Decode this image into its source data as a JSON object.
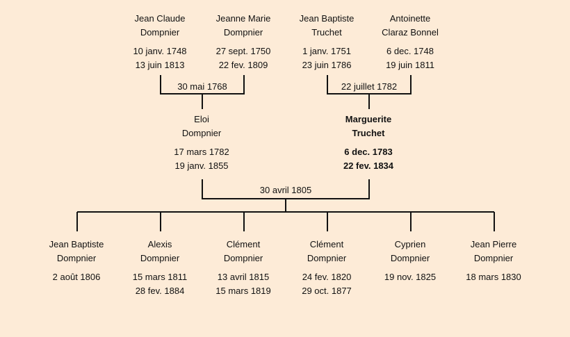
{
  "colors": {
    "background": "#fdebd7",
    "lines": "#111111"
  },
  "grandparents": [
    {
      "first": "Jean Claude",
      "last": "Dompnier",
      "birth": "10 janv. 1748",
      "death": "13 juin 1813"
    },
    {
      "first": "Jeanne Marie",
      "last": "Dompnier",
      "birth": "27 sept. 1750",
      "death": "22 fev. 1809"
    },
    {
      "first": "Jean Baptiste",
      "last": "Truchet",
      "birth": "1 janv. 1751",
      "death": "23 juin 1786"
    },
    {
      "first": "Antoinette",
      "last": "Claraz Bonnel",
      "birth": "6 dec. 1748",
      "death": "19 juin 1811"
    }
  ],
  "parents": [
    {
      "first": "Eloi",
      "last": "Dompnier",
      "birth": "17 mars 1782",
      "death": "19 janv. 1855",
      "highlight": false
    },
    {
      "first": "Marguerite",
      "last": "Truchet",
      "birth": "6 dec. 1783",
      "death": "22 fev. 1834",
      "highlight": true
    }
  ],
  "children": [
    {
      "first": "Jean Baptiste",
      "last": "Dompnier",
      "birth": "2 août 1806",
      "death": ""
    },
    {
      "first": "Alexis",
      "last": "Dompnier",
      "birth": "15 mars 1811",
      "death": "28 fev. 1884"
    },
    {
      "first": "Clément",
      "last": "Dompnier",
      "birth": "13 avril 1815",
      "death": "15 mars 1819"
    },
    {
      "first": "Clément",
      "last": "Dompnier",
      "birth": "24 fev. 1820",
      "death": "29 oct. 1877"
    },
    {
      "first": "Cyprien",
      "last": "Dompnier",
      "birth": "19 nov. 1825",
      "death": ""
    },
    {
      "first": "Jean Pierre",
      "last": "Dompnier",
      "birth": "18 mars 1830",
      "death": ""
    }
  ],
  "marriages": [
    {
      "date": "30 mai 1768"
    },
    {
      "date": "22 juillet 1782"
    },
    {
      "date": "30 avril 1805"
    }
  ]
}
